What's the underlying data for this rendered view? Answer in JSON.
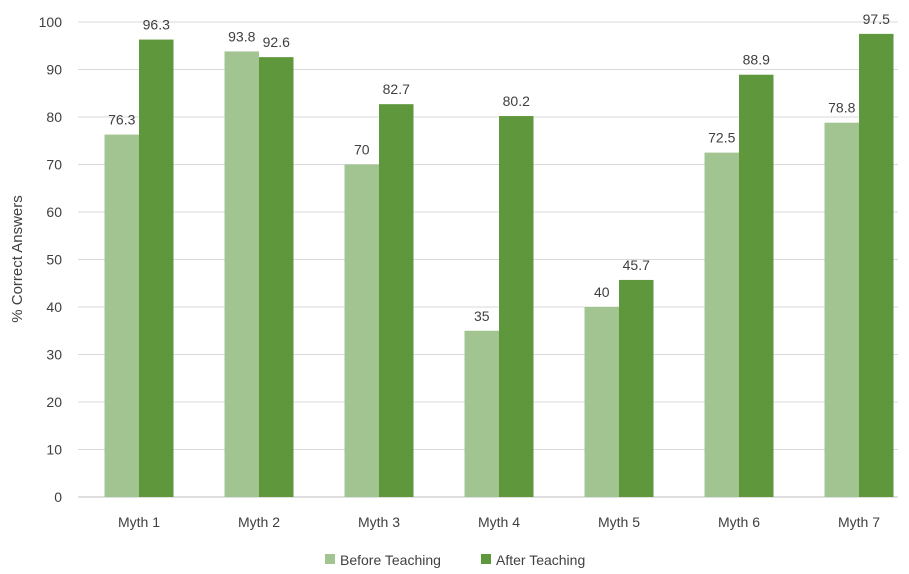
{
  "chart_data": {
    "type": "bar",
    "title": "",
    "xlabel": "",
    "ylabel": "% Correct Answers",
    "ylim": [
      0,
      100
    ],
    "yticks": [
      0,
      10,
      20,
      30,
      40,
      50,
      60,
      70,
      80,
      90,
      100
    ],
    "grid": true,
    "legend_position": "bottom",
    "categories": [
      "Myth 1",
      "Myth 2",
      "Myth 3",
      "Myth 4",
      "Myth 5",
      "Myth 6",
      "Myth 7"
    ],
    "series": [
      {
        "name": "Before Teaching",
        "color": "#a1c490",
        "values": [
          76.3,
          93.8,
          70,
          35,
          40,
          72.5,
          78.8
        ]
      },
      {
        "name": "After Teaching",
        "color": "#5f973d",
        "values": [
          96.3,
          92.6,
          82.7,
          80.2,
          45.7,
          88.9,
          97.5
        ]
      }
    ],
    "grid_color": "#d9d9d9",
    "axis_color": "#bfbfbf"
  }
}
